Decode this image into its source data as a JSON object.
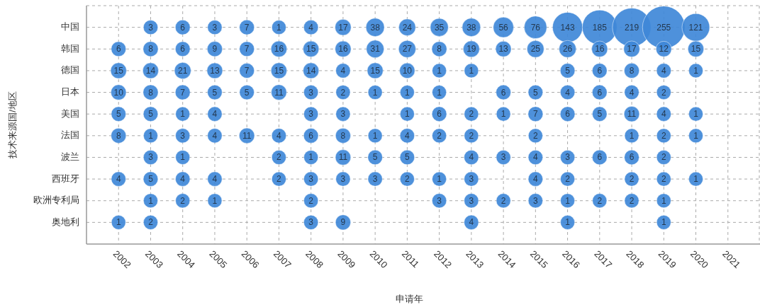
{
  "chart_data": {
    "type": "heatmap",
    "xlabel": "申请年",
    "ylabel": "技术来源国/地区",
    "color": "#3f88d8",
    "grid": true,
    "data_labels": true,
    "categories": [
      "2002",
      "2003",
      "2004",
      "2005",
      "2006",
      "2007",
      "2008",
      "2009",
      "2010",
      "2011",
      "2012",
      "2013",
      "2014",
      "2015",
      "2016",
      "2017",
      "2018",
      "2019",
      "2020",
      "2021"
    ],
    "y_categories": [
      "中国",
      "韩国",
      "德国",
      "日本",
      "美国",
      "法国",
      "波兰",
      "西班牙",
      "欧洲专利局",
      "奥地利"
    ],
    "cells": [
      [
        null,
        3,
        6,
        3,
        7,
        1,
        4,
        17,
        38,
        24,
        35,
        38,
        56,
        76,
        143,
        185,
        219,
        255,
        121,
        null
      ],
      [
        6,
        8,
        6,
        9,
        7,
        16,
        15,
        16,
        31,
        27,
        8,
        19,
        13,
        25,
        26,
        16,
        17,
        12,
        15,
        null
      ],
      [
        15,
        14,
        21,
        13,
        7,
        15,
        14,
        4,
        15,
        10,
        1,
        1,
        null,
        null,
        5,
        6,
        8,
        4,
        1,
        null
      ],
      [
        10,
        8,
        7,
        5,
        5,
        11,
        3,
        2,
        1,
        1,
        1,
        null,
        6,
        5,
        4,
        6,
        4,
        2,
        null,
        null
      ],
      [
        5,
        5,
        1,
        4,
        null,
        null,
        3,
        3,
        null,
        1,
        6,
        2,
        1,
        7,
        6,
        5,
        11,
        4,
        1,
        null
      ],
      [
        8,
        1,
        3,
        4,
        11,
        4,
        6,
        8,
        1,
        4,
        2,
        2,
        null,
        2,
        null,
        null,
        1,
        2,
        1,
        null
      ],
      [
        null,
        3,
        1,
        null,
        null,
        2,
        1,
        11,
        5,
        5,
        null,
        4,
        3,
        4,
        3,
        6,
        6,
        2,
        null,
        null
      ],
      [
        4,
        5,
        4,
        4,
        null,
        2,
        3,
        3,
        3,
        2,
        1,
        3,
        null,
        4,
        2,
        null,
        2,
        2,
        1,
        null
      ],
      [
        null,
        1,
        2,
        1,
        null,
        null,
        2,
        null,
        null,
        null,
        3,
        3,
        2,
        3,
        1,
        2,
        2,
        1,
        null,
        null
      ],
      [
        1,
        2,
        null,
        null,
        null,
        null,
        3,
        9,
        null,
        null,
        null,
        4,
        null,
        null,
        1,
        null,
        null,
        1,
        null,
        null
      ]
    ]
  }
}
